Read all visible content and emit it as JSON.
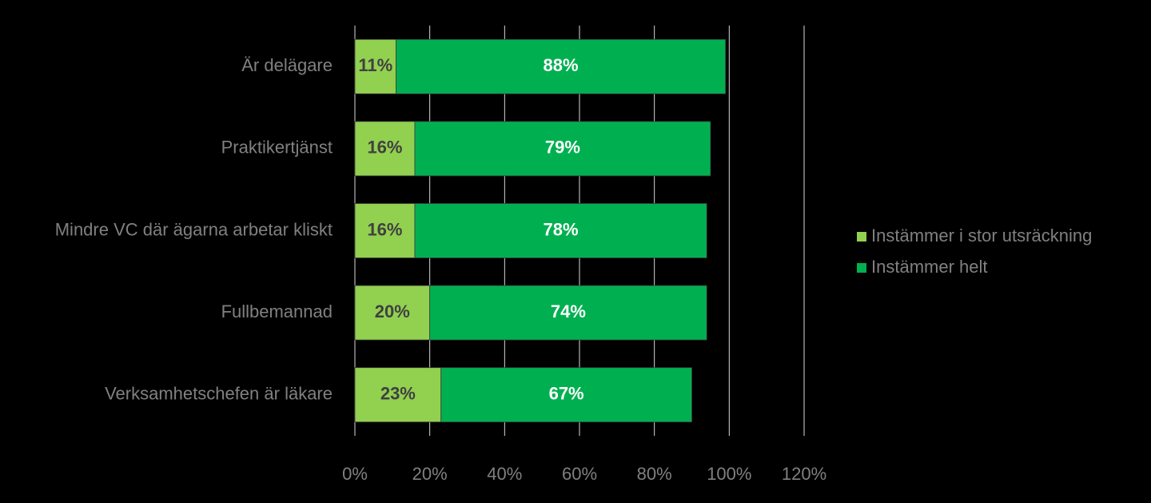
{
  "chart_data": {
    "type": "stacked-barh",
    "categories": [
      "Är delägare",
      "Praktikertjänst",
      "Mindre VC där ägarna arbetar kliskt",
      "Fullbemannad",
      "Verksamhetschefen är läkare"
    ],
    "series": [
      {
        "name": "Instämmer i stor utsräckning",
        "color": "#92d050",
        "label_color": "#404040",
        "values": [
          11,
          16,
          16,
          20,
          23
        ],
        "value_labels": [
          "11%",
          "16%",
          "16%",
          "20%",
          "23%"
        ]
      },
      {
        "name": "Instämmer helt",
        "color": "#00b050",
        "label_color": "#ffffff",
        "values": [
          88,
          79,
          78,
          74,
          67
        ],
        "value_labels": [
          "88%",
          "79%",
          "78%",
          "74%",
          "67%"
        ]
      }
    ],
    "xlim": [
      0,
      120
    ],
    "xticks": [
      {
        "value": 0,
        "label": "0%"
      },
      {
        "value": 20,
        "label": "20%"
      },
      {
        "value": 40,
        "label": "40%"
      },
      {
        "value": 60,
        "label": "60%"
      },
      {
        "value": 80,
        "label": "80%"
      },
      {
        "value": 100,
        "label": "100%"
      },
      {
        "value": 120,
        "label": "120%"
      }
    ],
    "grid": true,
    "legend": "right"
  }
}
